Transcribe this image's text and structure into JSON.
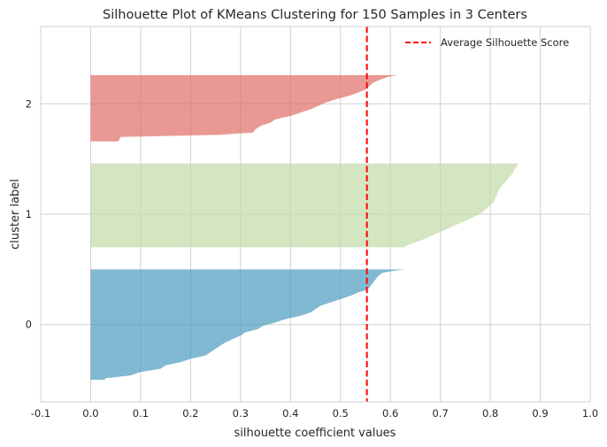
{
  "chart_data": {
    "type": "area",
    "title": "Silhouette Plot of KMeans Clustering for 150 Samples in 3 Centers",
    "xlabel": "silhouette coefficient values",
    "ylabel": "cluster label",
    "xlim": [
      -0.1,
      1.0
    ],
    "xticks": [
      -0.1,
      0.0,
      0.1,
      0.2,
      0.3,
      0.4,
      0.5,
      0.6,
      0.7,
      0.8,
      0.9,
      1.0
    ],
    "xtick_labels": [
      "-0.1",
      "0.0",
      "0.1",
      "0.2",
      "0.3",
      "0.4",
      "0.5",
      "0.6",
      "0.7",
      "0.8",
      "0.9",
      "1.0"
    ],
    "ylim": [
      -10,
      160
    ],
    "yticks": [
      {
        "value": 25,
        "label": "0"
      },
      {
        "value": 75,
        "label": "1"
      },
      {
        "value": 125,
        "label": "2"
      }
    ],
    "grid": true,
    "legend_position": "top-right",
    "average_silhouette_score": 0.553,
    "average_line_color": "#ff0000",
    "legend_entry": "Average Silhouette Score",
    "clusters": [
      {
        "label": "0",
        "color": "#4c9bbf",
        "y_start": 0,
        "y_end": 50,
        "profile": [
          [
            0,
            0.63
          ],
          [
            0.5,
            0.61
          ],
          [
            1.5,
            0.585
          ],
          [
            2.5,
            0.578
          ],
          [
            4,
            0.572
          ],
          [
            5.5,
            0.567
          ],
          [
            7,
            0.562
          ],
          [
            8.5,
            0.557
          ],
          [
            9.5,
            0.55
          ],
          [
            10.5,
            0.535
          ],
          [
            12,
            0.52
          ],
          [
            13.5,
            0.5
          ],
          [
            15,
            0.48
          ],
          [
            16.5,
            0.46
          ],
          [
            18,
            0.45
          ],
          [
            19.5,
            0.44
          ],
          [
            21,
            0.42
          ],
          [
            22.5,
            0.39
          ],
          [
            24,
            0.37
          ],
          [
            25.5,
            0.345
          ],
          [
            27,
            0.335
          ],
          [
            28.5,
            0.31
          ],
          [
            30,
            0.3
          ],
          [
            31.5,
            0.285
          ],
          [
            33,
            0.27
          ],
          [
            34.5,
            0.26
          ],
          [
            36,
            0.25
          ],
          [
            37.5,
            0.24
          ],
          [
            39,
            0.23
          ],
          [
            40.5,
            0.2
          ],
          [
            42,
            0.18
          ],
          [
            43.5,
            0.15
          ],
          [
            45,
            0.14
          ],
          [
            46.5,
            0.1
          ],
          [
            48,
            0.08
          ],
          [
            49.3,
            0.03
          ],
          [
            50,
            0.028
          ]
        ]
      },
      {
        "label": "1",
        "color": "#c1daa7",
        "y_start": 60,
        "y_end": 98,
        "profile": [
          [
            0,
            0.855
          ],
          [
            1.5,
            0.853
          ],
          [
            3,
            0.848
          ],
          [
            5,
            0.843
          ],
          [
            7,
            0.835
          ],
          [
            9,
            0.828
          ],
          [
            11,
            0.82
          ],
          [
            13,
            0.815
          ],
          [
            15,
            0.812
          ],
          [
            17,
            0.808
          ],
          [
            19,
            0.8
          ],
          [
            21,
            0.79
          ],
          [
            23,
            0.778
          ],
          [
            25,
            0.76
          ],
          [
            27,
            0.74
          ],
          [
            29,
            0.72
          ],
          [
            31,
            0.7
          ],
          [
            33,
            0.68
          ],
          [
            35,
            0.66
          ],
          [
            36.5,
            0.64
          ],
          [
            37.5,
            0.63
          ],
          [
            38,
            0.63
          ]
        ]
      },
      {
        "label": "2",
        "color": "#e06c65",
        "y_start": 108,
        "y_end": 138,
        "profile": [
          [
            0,
            0.615
          ],
          [
            0.8,
            0.595
          ],
          [
            2,
            0.58
          ],
          [
            3.5,
            0.565
          ],
          [
            5,
            0.558
          ],
          [
            6.5,
            0.55
          ],
          [
            8,
            0.535
          ],
          [
            9.5,
            0.515
          ],
          [
            11,
            0.49
          ],
          [
            12.5,
            0.47
          ],
          [
            14,
            0.455
          ],
          [
            15.5,
            0.44
          ],
          [
            17,
            0.42
          ],
          [
            18.5,
            0.4
          ],
          [
            20,
            0.37
          ],
          [
            21.5,
            0.36
          ],
          [
            23,
            0.34
          ],
          [
            24.5,
            0.33
          ],
          [
            26,
            0.325
          ],
          [
            27,
            0.26
          ],
          [
            28,
            0.06
          ],
          [
            29,
            0.058
          ],
          [
            30,
            0.055
          ]
        ]
      }
    ]
  }
}
